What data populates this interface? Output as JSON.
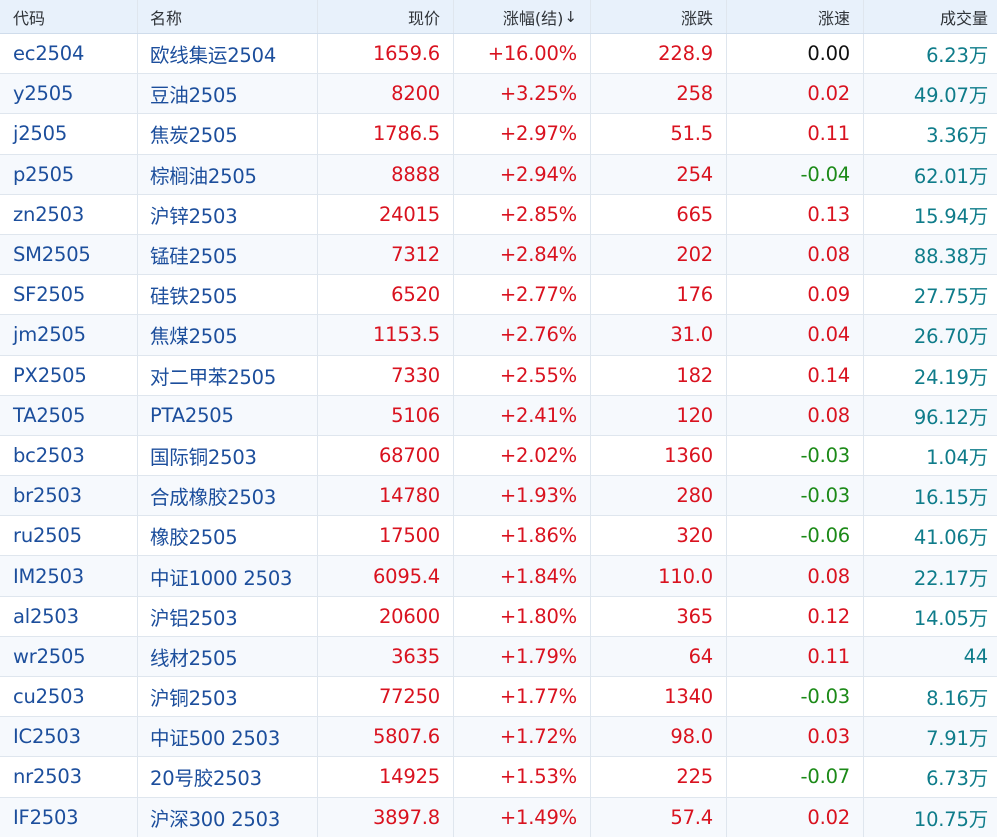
{
  "columns": {
    "code": "代码",
    "name": "名称",
    "price": "现价",
    "pct": "涨幅(结)",
    "pct_sort_indicator": "↓",
    "change": "涨跌",
    "speed": "涨速",
    "volume": "成交量"
  },
  "colors": {
    "up": "#d9121f",
    "down": "#1c8a18",
    "flat": "#111111",
    "volume": "#0f7c8a",
    "link": "#1c4e9c",
    "header_bg": "#e8f1fb"
  },
  "rows": [
    {
      "code": "ec2504",
      "name": "欧线集运2504",
      "price": "1659.6",
      "pct": "+16.00%",
      "change": "228.9",
      "speed": "0.00",
      "volume": "6.23万"
    },
    {
      "code": "y2505",
      "name": "豆油2505",
      "price": "8200",
      "pct": "+3.25%",
      "change": "258",
      "speed": "0.02",
      "volume": "49.07万"
    },
    {
      "code": "j2505",
      "name": "焦炭2505",
      "price": "1786.5",
      "pct": "+2.97%",
      "change": "51.5",
      "speed": "0.11",
      "volume": "3.36万"
    },
    {
      "code": "p2505",
      "name": "棕榈油2505",
      "price": "8888",
      "pct": "+2.94%",
      "change": "254",
      "speed": "-0.04",
      "volume": "62.01万"
    },
    {
      "code": "zn2503",
      "name": "沪锌2503",
      "price": "24015",
      "pct": "+2.85%",
      "change": "665",
      "speed": "0.13",
      "volume": "15.94万"
    },
    {
      "code": "SM2505",
      "name": "锰硅2505",
      "price": "7312",
      "pct": "+2.84%",
      "change": "202",
      "speed": "0.08",
      "volume": "88.38万"
    },
    {
      "code": "SF2505",
      "name": "硅铁2505",
      "price": "6520",
      "pct": "+2.77%",
      "change": "176",
      "speed": "0.09",
      "volume": "27.75万"
    },
    {
      "code": "jm2505",
      "name": "焦煤2505",
      "price": "1153.5",
      "pct": "+2.76%",
      "change": "31.0",
      "speed": "0.04",
      "volume": "26.70万"
    },
    {
      "code": "PX2505",
      "name": "对二甲苯2505",
      "price": "7330",
      "pct": "+2.55%",
      "change": "182",
      "speed": "0.14",
      "volume": "24.19万"
    },
    {
      "code": "TA2505",
      "name": "PTA2505",
      "price": "5106",
      "pct": "+2.41%",
      "change": "120",
      "speed": "0.08",
      "volume": "96.12万"
    },
    {
      "code": "bc2503",
      "name": "国际铜2503",
      "price": "68700",
      "pct": "+2.02%",
      "change": "1360",
      "speed": "-0.03",
      "volume": "1.04万"
    },
    {
      "code": "br2503",
      "name": "合成橡胶2503",
      "price": "14780",
      "pct": "+1.93%",
      "change": "280",
      "speed": "-0.03",
      "volume": "16.15万"
    },
    {
      "code": "ru2505",
      "name": "橡胶2505",
      "price": "17500",
      "pct": "+1.86%",
      "change": "320",
      "speed": "-0.06",
      "volume": "41.06万"
    },
    {
      "code": "IM2503",
      "name": "中证1000 2503",
      "price": "6095.4",
      "pct": "+1.84%",
      "change": "110.0",
      "speed": "0.08",
      "volume": "22.17万"
    },
    {
      "code": "al2503",
      "name": "沪铝2503",
      "price": "20600",
      "pct": "+1.80%",
      "change": "365",
      "speed": "0.12",
      "volume": "14.05万"
    },
    {
      "code": "wr2505",
      "name": "线材2505",
      "price": "3635",
      "pct": "+1.79%",
      "change": "64",
      "speed": "0.11",
      "volume": "44"
    },
    {
      "code": "cu2503",
      "name": "沪铜2503",
      "price": "77250",
      "pct": "+1.77%",
      "change": "1340",
      "speed": "-0.03",
      "volume": "8.16万"
    },
    {
      "code": "IC2503",
      "name": "中证500 2503",
      "price": "5807.6",
      "pct": "+1.72%",
      "change": "98.0",
      "speed": "0.03",
      "volume": "7.91万"
    },
    {
      "code": "nr2503",
      "name": "20号胶2503",
      "price": "14925",
      "pct": "+1.53%",
      "change": "225",
      "speed": "-0.07",
      "volume": "6.73万"
    },
    {
      "code": "IF2503",
      "name": "沪深300 2503",
      "price": "3897.8",
      "pct": "+1.49%",
      "change": "57.4",
      "speed": "0.02",
      "volume": "10.75万"
    }
  ]
}
